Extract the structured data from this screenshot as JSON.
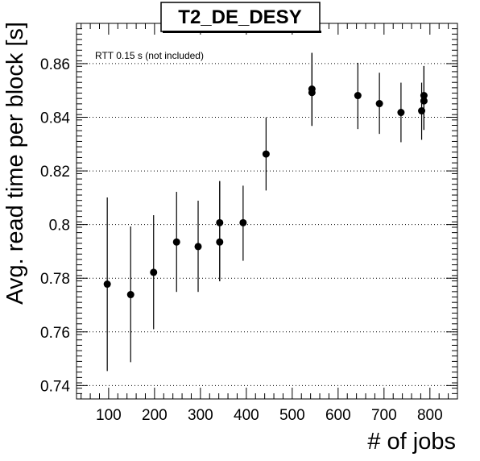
{
  "chart_data": {
    "type": "scatter",
    "title": "T2_DE_DESY",
    "annotation": "RTT 0.15 s (not included)",
    "xlabel": "# of jobs",
    "ylabel": "Avg. read time per block [s]",
    "xlim": [
      30,
      860
    ],
    "ylim": [
      0.735,
      0.875
    ],
    "xticks": [
      100,
      200,
      300,
      400,
      500,
      600,
      700,
      800
    ],
    "xtick_labels": [
      "100",
      "200",
      "300",
      "400",
      "500",
      "600",
      "700",
      "800"
    ],
    "yticks": [
      0.74,
      0.76,
      0.78,
      0.8,
      0.82,
      0.84,
      0.86
    ],
    "ytick_labels": [
      "0.74",
      "0.76",
      "0.78",
      "0.8",
      "0.82",
      "0.84",
      "0.86"
    ],
    "grid_y": true,
    "grid_x": false,
    "series": [
      {
        "points": [
          {
            "x": 97,
            "y": 0.7778,
            "lo": 0.7454,
            "hi": 0.8101
          },
          {
            "x": 148,
            "y": 0.7739,
            "lo": 0.7487,
            "hi": 0.7993
          },
          {
            "x": 198,
            "y": 0.7822,
            "lo": 0.761,
            "hi": 0.8035
          },
          {
            "x": 248,
            "y": 0.7935,
            "lo": 0.7749,
            "hi": 0.8122
          },
          {
            "x": 295,
            "y": 0.7918,
            "lo": 0.7749,
            "hi": 0.8089
          },
          {
            "x": 342,
            "y": 0.8007,
            "lo": 0.7789,
            "hi": 0.8162
          },
          {
            "x": 342,
            "y": 0.7935,
            "lo": 0.7789,
            "hi": 0.8162
          },
          {
            "x": 393,
            "y": 0.8007,
            "lo": 0.7865,
            "hi": 0.8145
          },
          {
            "x": 443,
            "y": 0.8263,
            "lo": 0.8127,
            "hi": 0.8399
          },
          {
            "x": 543,
            "y": 0.8505,
            "lo": 0.8368,
            "hi": 0.864
          },
          {
            "x": 543,
            "y": 0.8492,
            "lo": 0.8368,
            "hi": 0.864
          },
          {
            "x": 643,
            "y": 0.8481,
            "lo": 0.8356,
            "hi": 0.8603
          },
          {
            "x": 690,
            "y": 0.8451,
            "lo": 0.8338,
            "hi": 0.8566
          },
          {
            "x": 737,
            "y": 0.8418,
            "lo": 0.8307,
            "hi": 0.8529
          },
          {
            "x": 782,
            "y": 0.8424,
            "lo": 0.8316,
            "hi": 0.8529
          },
          {
            "x": 787,
            "y": 0.8481,
            "lo": 0.8353,
            "hi": 0.8591
          },
          {
            "x": 787,
            "y": 0.8461,
            "lo": 0.8353,
            "hi": 0.8591
          }
        ]
      }
    ]
  }
}
